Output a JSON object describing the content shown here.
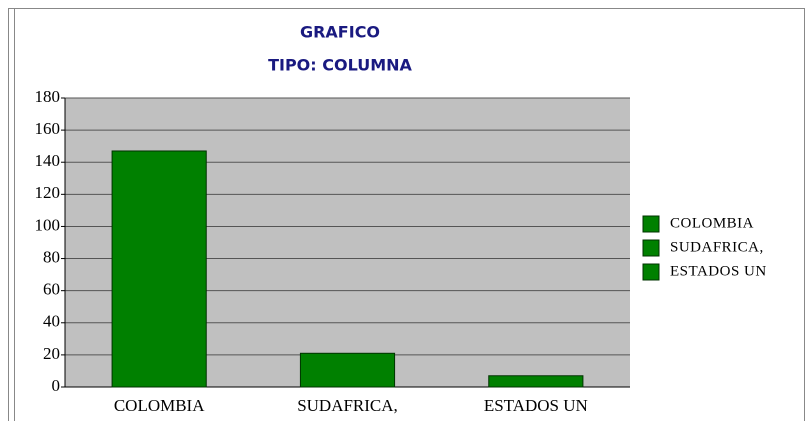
{
  "chart_data": {
    "type": "bar",
    "title": "GRAFICO",
    "subtitle": "TIPO: COLUMNA",
    "categories": [
      "COLOMBIA",
      "SUDAFRICA,",
      "ESTADOS UN"
    ],
    "values": [
      147,
      21,
      7
    ],
    "color": "#008000",
    "ylim": [
      0,
      180
    ],
    "yticks": [
      0,
      20,
      40,
      60,
      80,
      100,
      120,
      140,
      160,
      180
    ],
    "grid": true,
    "legend": "right"
  }
}
